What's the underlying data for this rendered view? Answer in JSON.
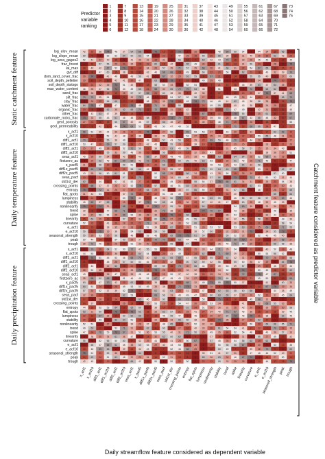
{
  "chart_data": {
    "type": "heatmap",
    "title": "",
    "xlabel": "Daily streamflow feature considered as dependent variable",
    "ylabel_right": "Catchment feature considered as predictor variable",
    "legend": {
      "title_lines": [
        "Predictor",
        "variable",
        "ranking"
      ],
      "groups": [
        [
          1,
          2,
          3,
          4,
          5,
          6
        ],
        [
          7,
          8,
          9,
          10,
          11,
          12
        ],
        [
          13,
          14,
          15,
          16,
          17,
          18
        ],
        [
          19,
          20,
          21,
          22,
          23,
          24
        ],
        [
          25,
          26,
          27,
          28,
          29,
          30
        ],
        [
          31,
          32,
          33,
          34,
          35,
          36
        ],
        [
          37,
          38,
          39,
          40,
          41,
          42
        ],
        [
          43,
          44,
          45,
          46,
          47,
          48
        ],
        [
          49,
          50,
          51,
          52,
          53,
          54
        ],
        [
          55,
          56,
          57,
          58,
          59,
          60
        ],
        [
          61,
          62,
          63,
          64,
          65,
          66
        ],
        [
          67,
          68,
          69,
          70,
          71,
          72
        ],
        [
          73,
          74,
          75
        ]
      ],
      "colors": [
        "#8b1a1a",
        "#a0342a",
        "#b54a3a",
        "#c6665a",
        "#d58a80",
        "#e3aca4",
        "#eecfca",
        "#f4e5e2",
        "#ece6e6",
        "#d9d0d0",
        "#c4b8b8",
        "#a89898",
        "#8a7676"
      ]
    },
    "columns": [
      "x_acf1",
      "x_acf10",
      "diff1_acf1",
      "diff1_acf10",
      "diff2_acf1",
      "diff2_acf10",
      "seas_acf1",
      "x_pacf5",
      "diff1x_pacf5",
      "diff2x_pacf5",
      "seas_pacf",
      "std1st_der",
      "crossing_points",
      "entropy",
      "flat_spots",
      "lumpiness",
      "nonlinearity",
      "stability",
      "trend",
      "spike",
      "linearity",
      "curvature",
      "e_acf1",
      "e_acf10",
      "seasonal_strength",
      "peak",
      "trough"
    ],
    "row_groups": [
      {
        "name": "Static catchment feature",
        "rows": [
          "log_elev_mean",
          "log_slope_mean",
          "log_area_gages2",
          "frac_forest",
          "lai_max",
          "gvf_diff",
          "dom_land_cover_frac",
          "soil_depth_pelletier",
          "soil_depth_statsgo",
          "max_water_content",
          "sand_frac",
          "silt_frac",
          "clay_frac",
          "water_frac",
          "organic_frac",
          "other_frac",
          "carbonate_rocks_frac",
          "geol_porosity",
          "geol_permeability"
        ]
      },
      {
        "name": "Daily temperature feature",
        "rows": [
          "x_acf1",
          "x_acf10",
          "diff1_acf1",
          "diff1_acf10",
          "diff2_acf1",
          "diff2_acf10",
          "seas_acf1",
          "firstzero_ac",
          "x_pacf5",
          "diff1x_pacf5",
          "diff2x_pacf5",
          "seas_pacf",
          "std1st_der",
          "crossing_points",
          "entropy",
          "flat_spots",
          "lumpiness",
          "stability",
          "nonlinearity",
          "trend",
          "spike",
          "linearity",
          "curvature",
          "e_acf1",
          "e_acf10",
          "seasonal_strength",
          "peak",
          "trough"
        ]
      },
      {
        "name": "Daily precipitation feature",
        "rows": [
          "x_acf1",
          "x_acf10",
          "diff1_acf1",
          "diff1_acf10",
          "diff2_acf1",
          "diff2_acf10",
          "seas_acf1",
          "firstzero_ac",
          "x_pacf5",
          "diff1x_pacf5",
          "diff2x_pacf5",
          "seas_pacf",
          "std1st_der",
          "crossing_points",
          "entropy",
          "flat_spots",
          "lumpiness",
          "stability",
          "nonlinearity",
          "trend",
          "spike",
          "linearity",
          "curvature",
          "e_acf1",
          "e_acf10",
          "seasonal_strength",
          "peak",
          "trough"
        ]
      }
    ],
    "value_range": [
      1,
      75
    ],
    "grid": false
  }
}
